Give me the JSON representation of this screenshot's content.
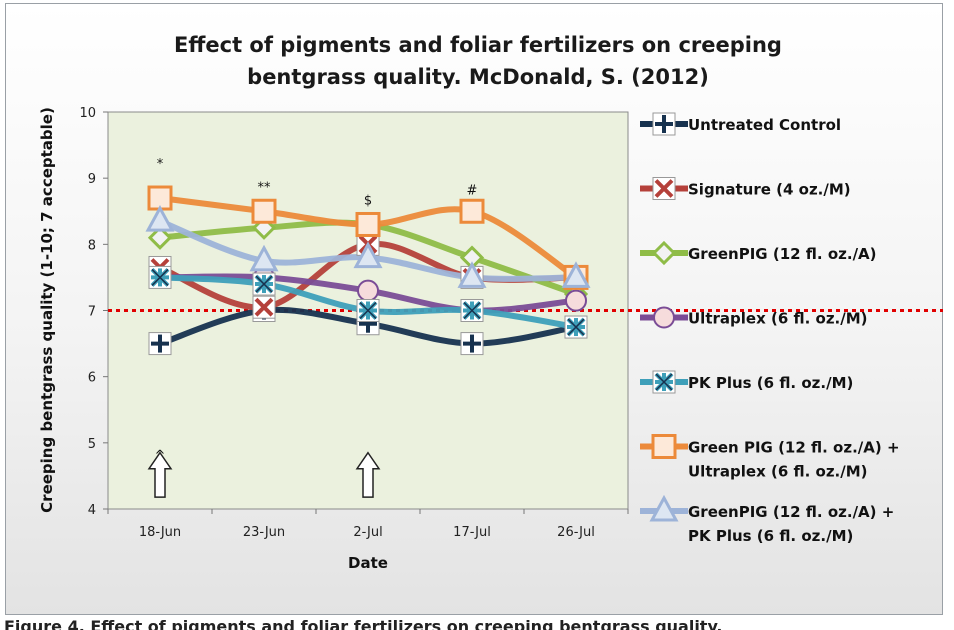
{
  "caption": "Figure 4. Effect of pigments and foliar fertilizers on creeping bentgrass quality.",
  "chart_data": {
    "type": "line",
    "title_lines": [
      "Effect of pigments and foliar fertilizers on creeping",
      "bentgrass quality.  McDonald, S. (2012)"
    ],
    "xlabel": "Date",
    "ylabel": "Creeping bentgrass quality (1-10; 7 acceptable)",
    "categories": [
      "18-Jun",
      "23-Jun",
      "2-Jul",
      "17-Jul",
      "26-Jul"
    ],
    "ylim": [
      4,
      10
    ],
    "yticks": [
      "4",
      "5",
      "6",
      "7",
      "8",
      "9",
      "10"
    ],
    "reference_line": {
      "y": 7,
      "color": "#e00000"
    },
    "plot_background": "#ebf1de",
    "grid": false,
    "legend_position": "right",
    "series": [
      {
        "name": "Untreated Control",
        "color": "#17324f",
        "marker": "plus",
        "values": [
          6.5,
          7.0,
          6.8,
          6.5,
          6.75
        ]
      },
      {
        "name": "Signature (4 oz./M)",
        "color": "#b5403a",
        "marker": "x",
        "values": [
          7.65,
          7.05,
          8.0,
          7.5,
          7.5
        ]
      },
      {
        "name": "GreenPIG (12 fl. oz./A)",
        "color": "#8fbc47",
        "marker": "diamond",
        "values": [
          8.1,
          8.25,
          8.3,
          7.8,
          7.25
        ]
      },
      {
        "name": "Ultraplex (6 fl. oz./M)",
        "color": "#7a4c96",
        "marker": "circle",
        "values": [
          7.5,
          7.5,
          7.3,
          7.0,
          7.15
        ]
      },
      {
        "name": "PK Plus (6 fl. oz./M)",
        "color": "#3e9fb9",
        "marker": "asterisk",
        "values": [
          7.5,
          7.4,
          7.0,
          7.0,
          6.75
        ]
      },
      {
        "name": "Green PIG (12 fl. oz./A) + Ultraplex (6 fl. oz./M)",
        "legend_lines": [
          "Green PIG (12 fl. oz./A) +",
          "Ultraplex (6 fl. oz./M)"
        ],
        "color": "#ec8a3a",
        "marker": "square",
        "values": [
          8.7,
          8.5,
          8.3,
          8.5,
          7.5
        ]
      },
      {
        "name": "GreenPIG (12 fl. oz./A) + PK Plus (6 fl. oz./M)",
        "legend_lines": [
          "GreenPIG (12 fl. oz./A) +",
          "PK Plus (6 fl. oz./M)"
        ],
        "color": "#9db3d8",
        "marker": "triangle",
        "values": [
          8.35,
          7.75,
          7.8,
          7.5,
          7.5
        ]
      }
    ],
    "annotations": [
      {
        "text": "*",
        "x": "18-Jun",
        "y": 9.15
      },
      {
        "text": "**",
        "x": "23-Jun",
        "y": 8.8
      },
      {
        "text": "$",
        "x": "2-Jul",
        "y": 8.6
      },
      {
        "text": "#",
        "x": "17-Jul",
        "y": 8.75
      },
      {
        "text": "^",
        "x": "18-Jun",
        "y": 4.75
      }
    ],
    "application_arrows": [
      "18-Jun",
      "2-Jul"
    ]
  }
}
